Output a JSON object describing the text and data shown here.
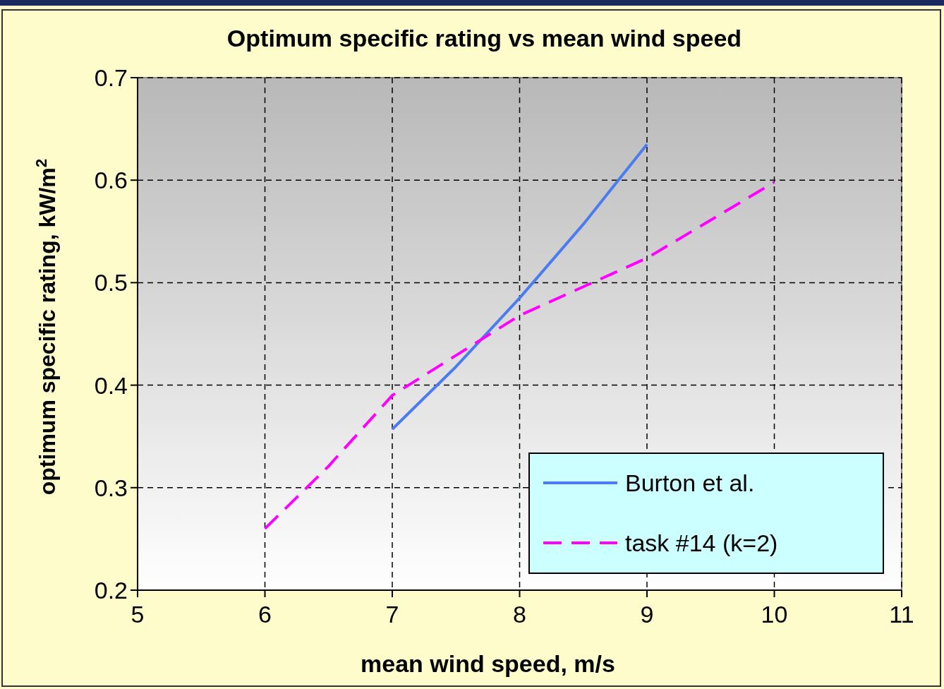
{
  "chart_data": {
    "type": "line",
    "title": "Optimum specific rating vs mean wind speed",
    "xlabel": "mean wind speed, m/s",
    "ylabel": "optimum specific rating, kW/m$^{2}$",
    "xlim": [
      5,
      11
    ],
    "xticks": [
      5,
      6,
      7,
      8,
      9,
      10,
      11
    ],
    "ylim": [
      0.2,
      0.7
    ],
    "yticks": [
      0.2,
      0.3,
      0.4,
      0.5,
      0.6,
      0.7
    ],
    "grid": true,
    "legend": "bottom right",
    "marker": "none",
    "series": [
      {
        "name": "Burton et al.",
        "color": "#4a7cf0",
        "line_style": "solid",
        "x": [
          7,
          7.5,
          8,
          8.5,
          9
        ],
        "values": [
          0.357,
          0.418,
          0.485,
          0.557,
          0.635
        ]
      },
      {
        "name": "task #14 (k=2)",
        "color": "#ff00ff",
        "line_style": "dashed",
        "x": [
          6,
          6.5,
          7,
          8,
          9,
          10
        ],
        "values": [
          0.26,
          0.321,
          0.39,
          0.468,
          0.524,
          0.598
        ]
      }
    ]
  }
}
